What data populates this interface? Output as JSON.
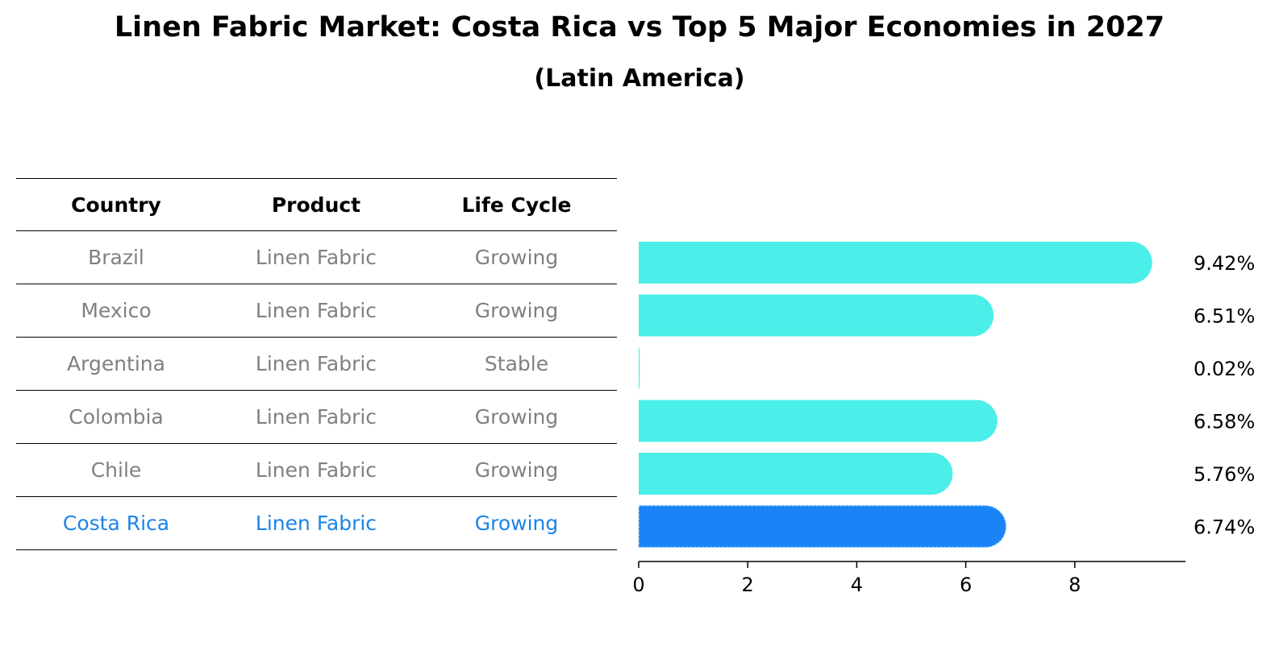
{
  "title": "Linen Fabric Market: Costa Rica vs Top 5 Major Economies in 2027",
  "subtitle": "(Latin America)",
  "table": {
    "headers": [
      "Country",
      "Product",
      "Life Cycle"
    ],
    "rows": [
      {
        "country": "Brazil",
        "product": "Linen Fabric",
        "life_cycle": "Growing"
      },
      {
        "country": "Mexico",
        "product": "Linen Fabric",
        "life_cycle": "Growing"
      },
      {
        "country": "Argentina",
        "product": "Linen Fabric",
        "life_cycle": "Stable"
      },
      {
        "country": "Colombia",
        "product": "Linen Fabric",
        "life_cycle": "Growing"
      },
      {
        "country": "Chile",
        "product": "Linen Fabric",
        "life_cycle": "Growing"
      },
      {
        "country": "Costa Rica",
        "product": "Linen Fabric",
        "life_cycle": "Growing"
      }
    ]
  },
  "chart_data": {
    "type": "bar",
    "orientation": "horizontal",
    "title": "Linen Fabric Market: Costa Rica vs Top 5 Major Economies in 2027",
    "subtitle": "(Latin America)",
    "categories": [
      "Brazil",
      "Mexico",
      "Argentina",
      "Colombia",
      "Chile",
      "Costa Rica"
    ],
    "values": [
      9.42,
      6.51,
      0.02,
      6.58,
      5.76,
      6.74
    ],
    "value_labels": [
      "9.42%",
      "6.51%",
      "0.02%",
      "6.58%",
      "5.76%",
      "6.74%"
    ],
    "highlight": "Costa Rica",
    "xlim": [
      0,
      9.9
    ],
    "xticks": [
      0,
      2,
      4,
      6,
      8
    ],
    "xlabel": "",
    "ylabel": "",
    "grid": false,
    "colors": {
      "default": "#4ceee9",
      "highlight": "#1a84f7",
      "highlight_text": "#1a84e8",
      "muted_text": "#808080"
    }
  }
}
